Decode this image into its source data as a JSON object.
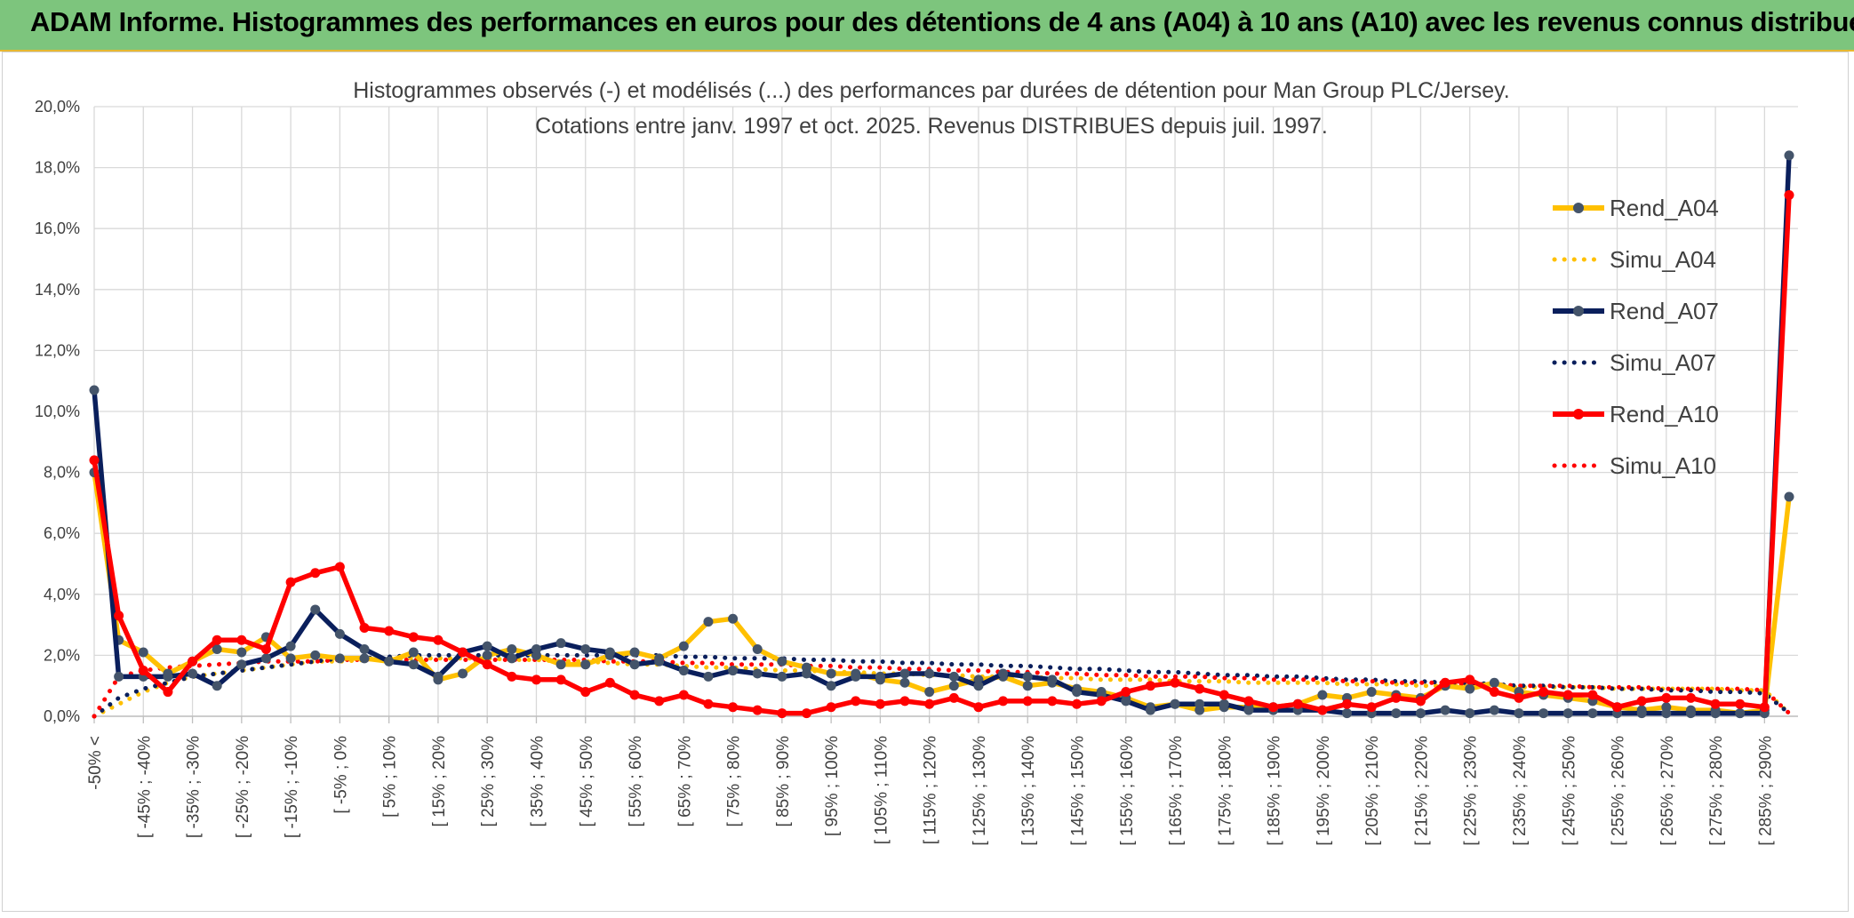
{
  "header": {
    "title": "ADAM Informe. Histogrammes des performances en euros pour des détentions de 4 ans (A04) à 10 ans (A10) avec les revenus connus distribués"
  },
  "chart_data": {
    "type": "line",
    "title": "Histogrammes observés (-) et modélisés (...) des performances par durées de détention pour Man Group PLC/Jersey.",
    "subtitle": "Cotations entre janv. 1997 et oct. 2025. Revenus DISTRIBUES depuis juil. 1997.",
    "xlabel": "",
    "ylabel": "",
    "ylim": [
      0,
      20
    ],
    "yticks": [
      "0,0%",
      "2,0%",
      "4,0%",
      "6,0%",
      "8,0%",
      "10,0%",
      "12,0%",
      "14,0%",
      "16,0%",
      "18,0%",
      "20,0%"
    ],
    "grid": true,
    "legend_position": "right",
    "x_tick_labels": [
      "-50% <",
      "[ -45% ; -40%",
      "[ -35% ; -30%",
      "[ -25% ; -20%",
      "[ -15% ; -10%",
      "[ -5% ; 0%",
      "[ 5% ; 10%",
      "[ 15% ; 20%",
      "[ 25% ; 30%",
      "[ 35% ; 40%",
      "[ 45% ; 50%",
      "[ 55% ; 60%",
      "[ 65% ; 70%",
      "[ 75% ; 80%",
      "[ 85% ; 90%",
      "[ 95% ; 100%",
      "[ 105% ; 110%",
      "[ 115% ; 120%",
      "[ 125% ; 130%",
      "[ 135% ; 140%",
      "[ 145% ; 150%",
      "[ 155% ; 160%",
      "[ 165% ; 170%",
      "[ 175% ; 180%",
      "[ 185% ; 190%",
      "[ 195% ; 200%",
      "[ 205% ; 210%",
      "[ 215% ; 220%",
      "[ 225% ; 230%",
      "[ 235% ; 240%",
      "[ 245% ; 250%",
      "[ 255% ; 260%",
      "[ 265% ; 270%",
      "[ 275% ; 280%",
      "[ 285% ; 290%"
    ],
    "x_count": 70,
    "series": [
      {
        "name": "Rend_A04",
        "style": "solid",
        "markers": true,
        "color": "#ffc000",
        "values": [
          8.0,
          2.5,
          2.1,
          1.4,
          1.8,
          2.2,
          2.1,
          2.6,
          1.9,
          2.0,
          1.9,
          1.9,
          1.8,
          2.1,
          1.2,
          1.4,
          2.0,
          2.2,
          2.0,
          1.7,
          1.7,
          2.0,
          2.1,
          1.9,
          2.3,
          3.1,
          3.2,
          2.2,
          1.8,
          1.6,
          1.4,
          1.4,
          1.2,
          1.1,
          0.8,
          1.0,
          1.2,
          1.3,
          1.0,
          1.1,
          0.9,
          0.8,
          0.6,
          0.3,
          0.4,
          0.2,
          0.3,
          0.3,
          0.3,
          0.4,
          0.7,
          0.6,
          0.8,
          0.7,
          0.6,
          1.0,
          0.9,
          1.1,
          0.8,
          0.7,
          0.6,
          0.5,
          0.3,
          0.2,
          0.3,
          0.2,
          0.2,
          0.1,
          0.2,
          7.2
        ]
      },
      {
        "name": "Simu_A04",
        "style": "dotted",
        "markers": false,
        "color": "#ffc000",
        "values": [
          0.0,
          0.4,
          0.8,
          1.1,
          1.3,
          1.4,
          1.5,
          1.6,
          1.7,
          1.8,
          1.8,
          1.85,
          1.9,
          1.9,
          1.9,
          1.9,
          1.9,
          1.85,
          1.85,
          1.8,
          1.8,
          1.75,
          1.7,
          1.7,
          1.65,
          1.6,
          1.6,
          1.55,
          1.5,
          1.5,
          1.45,
          1.45,
          1.4,
          1.4,
          1.35,
          1.35,
          1.3,
          1.3,
          1.3,
          1.25,
          1.25,
          1.2,
          1.2,
          1.2,
          1.15,
          1.15,
          1.15,
          1.1,
          1.1,
          1.1,
          1.1,
          1.05,
          1.05,
          1.05,
          1.0,
          1.0,
          1.0,
          1.0,
          0.95,
          0.95,
          0.95,
          0.95,
          0.9,
          0.9,
          0.9,
          0.9,
          0.9,
          0.85,
          0.85,
          0.1
        ]
      },
      {
        "name": "Rend_A07",
        "style": "solid",
        "markers": true,
        "color": "#0a1f5c",
        "values": [
          10.7,
          1.3,
          1.3,
          1.3,
          1.4,
          1.0,
          1.7,
          1.9,
          2.3,
          3.5,
          2.7,
          2.2,
          1.8,
          1.7,
          1.3,
          2.1,
          2.3,
          1.9,
          2.2,
          2.4,
          2.2,
          2.1,
          1.7,
          1.8,
          1.5,
          1.3,
          1.5,
          1.4,
          1.3,
          1.4,
          1.0,
          1.3,
          1.3,
          1.4,
          1.4,
          1.3,
          1.0,
          1.4,
          1.3,
          1.2,
          0.8,
          0.7,
          0.5,
          0.2,
          0.4,
          0.4,
          0.4,
          0.2,
          0.2,
          0.2,
          0.2,
          0.1,
          0.1,
          0.1,
          0.1,
          0.2,
          0.1,
          0.2,
          0.1,
          0.1,
          0.1,
          0.1,
          0.1,
          0.1,
          0.1,
          0.1,
          0.1,
          0.1,
          0.1,
          18.4
        ]
      },
      {
        "name": "Simu_A07",
        "style": "dotted",
        "markers": false,
        "color": "#0a1f5c",
        "values": [
          0.0,
          0.6,
          0.9,
          1.1,
          1.3,
          1.4,
          1.5,
          1.6,
          1.7,
          1.8,
          1.9,
          1.9,
          1.95,
          2.0,
          2.0,
          2.0,
          2.0,
          2.0,
          2.0,
          2.0,
          2.0,
          2.0,
          2.0,
          2.0,
          1.95,
          1.95,
          1.9,
          1.9,
          1.9,
          1.85,
          1.85,
          1.8,
          1.8,
          1.75,
          1.75,
          1.7,
          1.7,
          1.65,
          1.65,
          1.6,
          1.55,
          1.55,
          1.5,
          1.45,
          1.45,
          1.4,
          1.35,
          1.35,
          1.3,
          1.3,
          1.25,
          1.2,
          1.2,
          1.15,
          1.15,
          1.1,
          1.1,
          1.05,
          1.0,
          1.0,
          0.95,
          0.95,
          0.9,
          0.9,
          0.85,
          0.85,
          0.8,
          0.8,
          0.75,
          0.1
        ]
      },
      {
        "name": "Rend_A10",
        "style": "solid",
        "markers": true,
        "color": "#ff0000",
        "values": [
          8.4,
          3.3,
          1.5,
          0.8,
          1.8,
          2.5,
          2.5,
          2.2,
          4.4,
          4.7,
          4.9,
          2.9,
          2.8,
          2.6,
          2.5,
          2.1,
          1.7,
          1.3,
          1.2,
          1.2,
          0.8,
          1.1,
          0.7,
          0.5,
          0.7,
          0.4,
          0.3,
          0.2,
          0.1,
          0.1,
          0.3,
          0.5,
          0.4,
          0.5,
          0.4,
          0.6,
          0.3,
          0.5,
          0.5,
          0.5,
          0.4,
          0.5,
          0.8,
          1.0,
          1.1,
          0.9,
          0.7,
          0.5,
          0.3,
          0.4,
          0.2,
          0.4,
          0.3,
          0.6,
          0.5,
          1.1,
          1.2,
          0.8,
          0.6,
          0.8,
          0.7,
          0.7,
          0.3,
          0.5,
          0.6,
          0.6,
          0.4,
          0.4,
          0.3,
          17.1
        ]
      },
      {
        "name": "Simu_A10",
        "style": "dotted",
        "markers": false,
        "color": "#ff0000",
        "values": [
          0.0,
          1.3,
          1.5,
          1.6,
          1.65,
          1.7,
          1.75,
          1.8,
          1.8,
          1.8,
          1.85,
          1.85,
          1.85,
          1.85,
          1.85,
          1.85,
          1.85,
          1.85,
          1.85,
          1.85,
          1.85,
          1.8,
          1.8,
          1.8,
          1.75,
          1.75,
          1.7,
          1.7,
          1.7,
          1.65,
          1.65,
          1.6,
          1.6,
          1.55,
          1.55,
          1.5,
          1.5,
          1.45,
          1.45,
          1.4,
          1.4,
          1.35,
          1.35,
          1.3,
          1.3,
          1.3,
          1.25,
          1.25,
          1.2,
          1.2,
          1.2,
          1.15,
          1.15,
          1.1,
          1.1,
          1.1,
          1.05,
          1.05,
          1.0,
          1.0,
          1.0,
          0.95,
          0.95,
          0.95,
          0.9,
          0.9,
          0.9,
          0.9,
          0.85,
          0.1
        ]
      }
    ]
  }
}
